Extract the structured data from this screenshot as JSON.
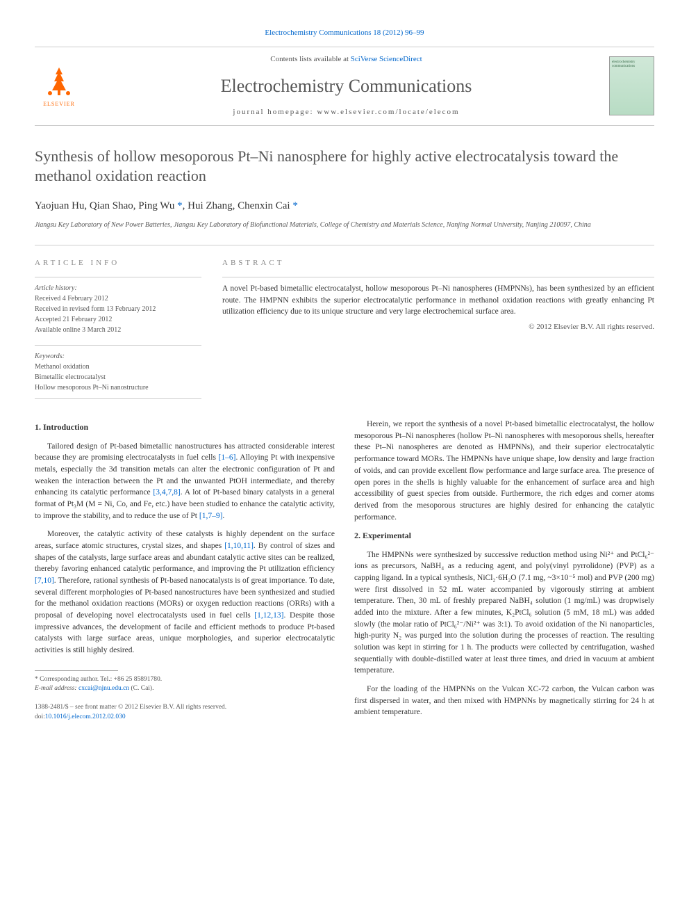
{
  "header": {
    "top_link_prefix": "Electrochemistry Communications 18 (2012) 96–99",
    "contents_prefix": "Contents lists available at ",
    "contents_link": "SciVerse ScienceDirect",
    "journal_name": "Electrochemistry Communications",
    "homepage_prefix": "journal homepage: ",
    "homepage_url": "www.elsevier.com/locate/elecom",
    "publisher": "ELSEVIER",
    "cover_text": "electrochemistry communications"
  },
  "article": {
    "title": "Synthesis of hollow mesoporous Pt–Ni nanosphere for highly active electrocatalysis toward the methanol oxidation reaction",
    "authors_html": "Yaojuan Hu, Qian Shao, Ping Wu <span class='star'>*</span>, Hui Zhang, Chenxin Cai <span class='star'>*</span>",
    "affiliation": "Jiangsu Key Laboratory of New Power Batteries, Jiangsu Key Laboratory of Biofunctional Materials, College of Chemistry and Materials Science, Nanjing Normal University, Nanjing 210097, China"
  },
  "info": {
    "label": "ARTICLE INFO",
    "history_label": "Article history:",
    "received": "Received 4 February 2012",
    "revised": "Received in revised form 13 February 2012",
    "accepted": "Accepted 21 February 2012",
    "online": "Available online 3 March 2012",
    "keywords_label": "Keywords:",
    "kw1": "Methanol oxidation",
    "kw2": "Bimetallic electrocatalyst",
    "kw3": "Hollow mesoporous Pt–Ni nanostructure"
  },
  "abstract": {
    "label": "ABSTRACT",
    "text": "A novel Pt-based bimetallic electrocatalyst, hollow mesoporous Pt–Ni nanospheres (HMPNNs), has been synthesized by an efficient route. The HMPNN exhibits the superior electrocatalytic performance in methanol oxidation reactions with greatly enhancing Pt utilization efficiency due to its unique structure and very large electrochemical surface area.",
    "copyright": "© 2012 Elsevier B.V. All rights reserved."
  },
  "body": {
    "h1": "1. Introduction",
    "p1a": "Tailored design of Pt-based bimetallic nanostructures has attracted considerable interest because they are promising electrocatalysts in fuel cells ",
    "c1": "[1–6]",
    "p1b": ". Alloying Pt with inexpensive metals, especially the 3d transition metals can alter the electronic configuration of Pt and weaken the interaction between the Pt and the unwanted PtOH intermediate, and thereby enhancing its catalytic performance ",
    "c2": "[3,4,7,8]",
    "p1c": ". A lot of Pt-based binary catalysts in a general format of Pt₃M (M = Ni, Co, and Fe, etc.) have been studied to enhance the catalytic activity, to improve the stability, and to reduce the use of Pt ",
    "c3": "[1,7–9]",
    "p1d": ".",
    "p2a": "Moreover, the catalytic activity of these catalysts is highly dependent on the surface areas, surface atomic structures, crystal sizes, and shapes ",
    "c4": "[1,10,11]",
    "p2b": ". By control of sizes and shapes of the catalysts, large surface areas and abundant catalytic active sites can be realized, thereby favoring enhanced catalytic performance, and improving the Pt utilization efficiency ",
    "c5": "[7,10]",
    "p2c": ". Therefore, rational synthesis of Pt-based nanocatalysts is of great importance. To date, several different morphologies of Pt-based nanostructures have been synthesized and studied for the methanol oxidation reactions (MORs) or oxygen reduction reactions (ORRs) with a proposal of developing novel electrocatalysts used in fuel cells ",
    "c6": "[1,12,13]",
    "p2d": ". Despite those impressive advances, the development of facile and efficient methods to produce Pt-based catalysts with large surface areas, unique morphologies, and superior electrocatalytic activities is still highly desired.",
    "p3": "Herein, we report the synthesis of a novel Pt-based bimetallic electrocatalyst, the hollow mesoporous Pt–Ni nanospheres (hollow Pt–Ni nanospheres with mesoporous shells, hereafter these Pt–Ni nanospheres are denoted as HMPNNs), and their superior electrocatalytic performance toward MORs. The HMPNNs have unique shape, low density and large fraction of voids, and can provide excellent flow performance and large surface area. The presence of open pores in the shells is highly valuable for the enhancement of surface area and high accessibility of guest species from outside. Furthermore, the rich edges and corner atoms derived from the mesoporous structures are highly desired for enhancing the catalytic performance.",
    "h2": "2. Experimental",
    "p4": "The HMPNNs were synthesized by successive reduction method using Ni²⁺ and PtCl₆²⁻ ions as precursors, NaBH₄ as a reducing agent, and poly(vinyl pyrrolidone) (PVP) as a capping ligand. In a typical synthesis, NiCl₂·6H₂O (7.1 mg, ~3×10⁻⁵ mol) and PVP (200 mg) were first dissolved in 52 mL water accompanied by vigorously stirring at ambient temperature. Then, 30 mL of freshly prepared NaBH₄ solution (1 mg/mL) was dropwisely added into the mixture. After a few minutes, K₂PtCl₆ solution (5 mM, 18 mL) was added slowly (the molar ratio of PtCl₆²⁻/Ni²⁺ was 3:1). To avoid oxidation of the Ni nanoparticles, high-purity N₂ was purged into the solution during the processes of reaction. The resulting solution was kept in stirring for 1 h. The products were collected by centrifugation, washed sequentially with double-distilled water at least three times, and dried in vacuum at ambient temperature.",
    "p5": "For the loading of the HMPNNs on the Vulcan XC-72 carbon, the Vulcan carbon was first dispersed in water, and then mixed with HMPNNs by magnetically stirring for 24 h at ambient temperature."
  },
  "footnote": {
    "corr": "* Corresponding author. Tel.: +86 25 85891780.",
    "email_label": "E-mail address: ",
    "email": "cxcai@njnu.edu.cn",
    "email_suffix": " (C. Cai)."
  },
  "bottom": {
    "issn": "1388-2481/$ – see front matter © 2012 Elsevier B.V. All rights reserved.",
    "doi_prefix": "doi:",
    "doi": "10.1016/j.elecom.2012.02.030"
  },
  "colors": {
    "link": "#0066cc",
    "text": "#333333",
    "muted": "#555555",
    "rule": "#cccccc",
    "elsevier": "#ff6600",
    "cover_bg": "#d0e8d8"
  }
}
